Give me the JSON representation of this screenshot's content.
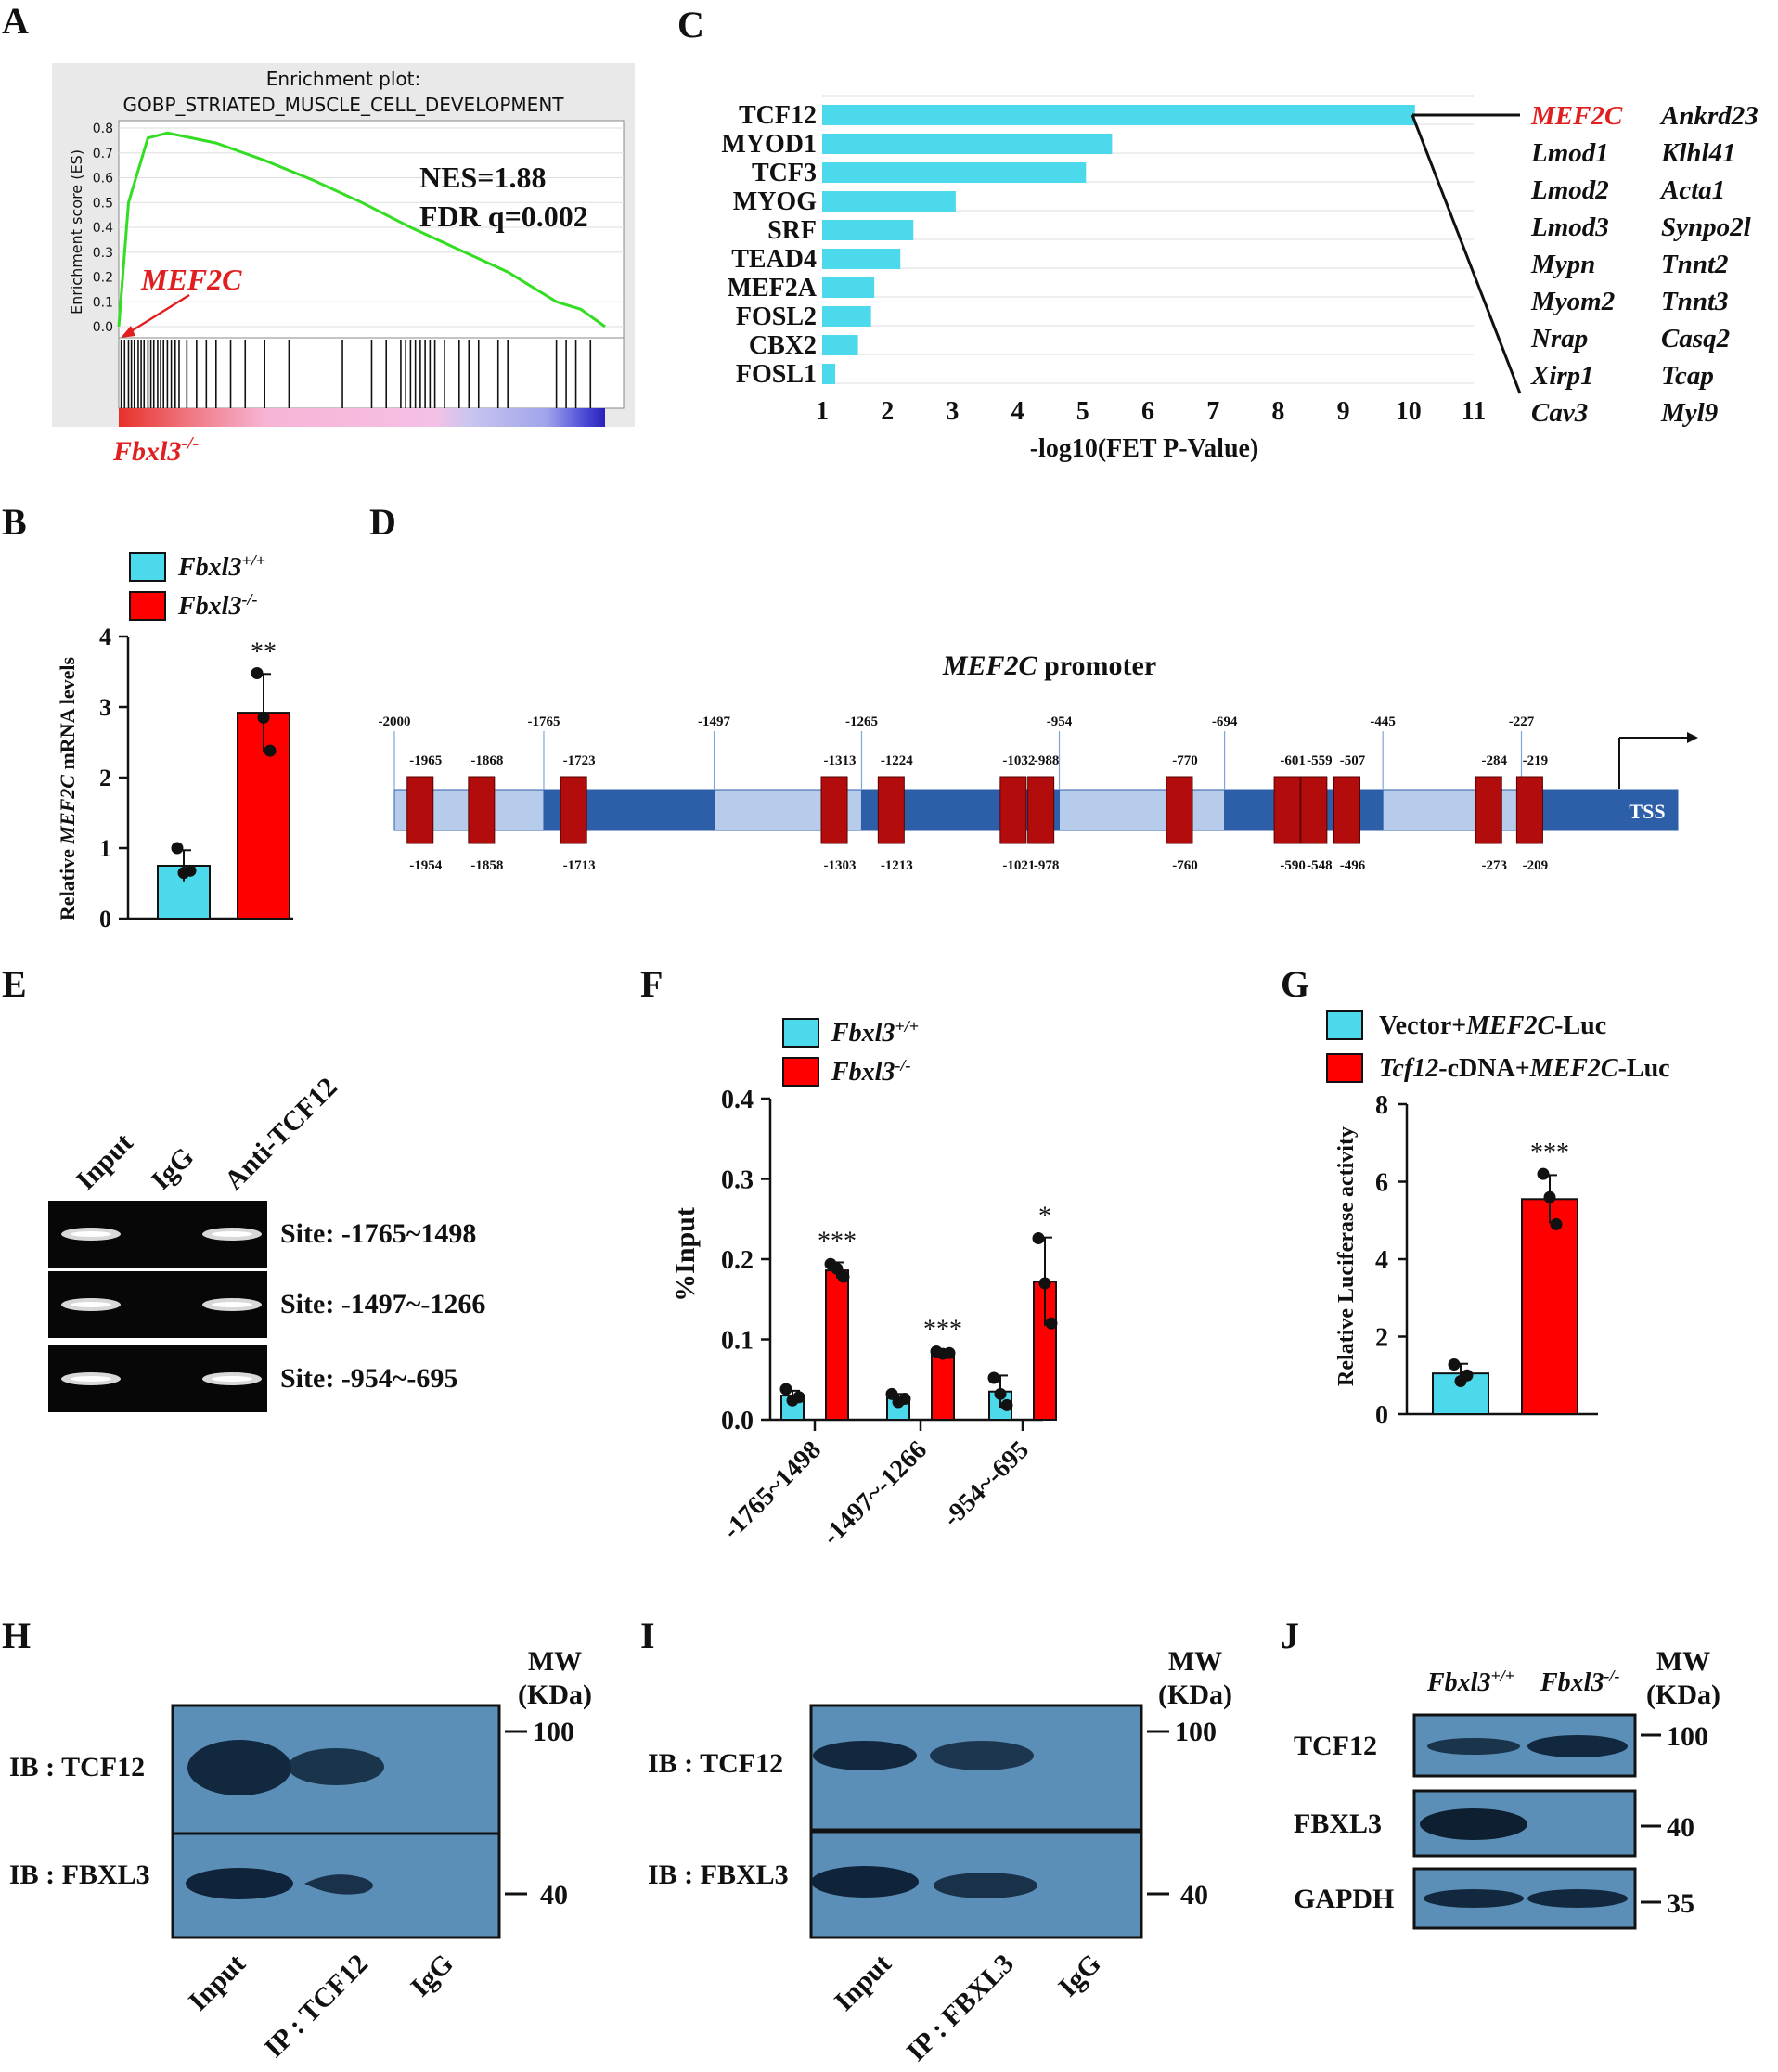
{
  "panels": {
    "A": "A",
    "B": "B",
    "C": "C",
    "D": "D",
    "E": "E",
    "F": "F",
    "G": "G",
    "H": "H",
    "I": "I",
    "J": "J"
  },
  "panel_a": {
    "title_line1": "Enrichment plot:",
    "title_line2": "GOBP_STRIATED_MUSCLE_CELL_DEVELOPMENT",
    "ylabel": "Enrichment score (ES)",
    "yticks": [
      "0.8",
      "0.7",
      "0.6",
      "0.5",
      "0.4",
      "0.3",
      "0.2",
      "0.1",
      "0.0"
    ],
    "nes": "NES=1.88",
    "fdr": "FDR q=0.002",
    "gene_label": "MEF2C",
    "genotype": "Fbxl3",
    "genotype_sup": "-/-"
  },
  "panel_b": {
    "legend": [
      {
        "name": "Fbxl3",
        "sup": "+/+",
        "color": "#4dd9ec"
      },
      {
        "name": "Fbxl3",
        "sup": "-/-",
        "color": "#ff0000"
      }
    ],
    "ylabel_pre": "Relative ",
    "ylabel_gene": "MEF2C",
    "ylabel_post": " mRNA levels",
    "yticks": [
      "0",
      "1",
      "2",
      "3",
      "4"
    ],
    "sig": "**"
  },
  "panel_c": {
    "xlabel": "-log10(FET P-Value)",
    "xticks": [
      "1",
      "2",
      "3",
      "4",
      "5",
      "6",
      "7",
      "8",
      "9",
      "10",
      "11"
    ],
    "genes_col1": [
      "MEF2C",
      "Lmod1",
      "Lmod2",
      "Lmod3",
      "Mypn",
      "Myom2",
      "Nrap",
      "Xirp1",
      "Cav3"
    ],
    "genes_col2": [
      "Ankrd23",
      "Klhl41",
      "Acta1",
      "Synpo2l",
      "Tnnt2",
      "Tnnt3",
      "Casq2",
      "Tcap",
      "Myl9"
    ]
  },
  "panel_d": {
    "title_gene": "MEF2C",
    "title_rest": " promoter",
    "top_labels": [
      "-2000",
      "-1765",
      "-1497",
      "-1265",
      "-954",
      "-694",
      "-445",
      "-227"
    ],
    "site_top": [
      "-1965",
      "-1868",
      "-1723",
      "-1313",
      "-1224",
      "-1032",
      "-988",
      "-770",
      "-601",
      "-559",
      "-507",
      "-284",
      "-219"
    ],
    "site_bottom": [
      "-1954",
      "-1858",
      "-1713",
      "-1303",
      "-1213",
      "-1021",
      "-978",
      "-760",
      "-590",
      "-548",
      "-496",
      "-273",
      "-209"
    ],
    "tss": "TSS"
  },
  "panel_e": {
    "lanes": [
      "Input",
      "IgG",
      "Anti-TCF12"
    ],
    "sites": [
      "Site: -1765~1498",
      "Site: -1497~-1266",
      "Site: -954~-695"
    ]
  },
  "panel_f": {
    "legend": [
      {
        "name": "Fbxl3",
        "sup": "+/+",
        "color": "#4dd9ec"
      },
      {
        "name": "Fbxl3",
        "sup": "-/-",
        "color": "#ff0000"
      }
    ],
    "ylabel": "%Input",
    "yticks": [
      "0.0",
      "0.1",
      "0.2",
      "0.3",
      "0.4"
    ],
    "xticks": [
      "-1765~1498",
      "-1497~-1266",
      "-954~-695"
    ],
    "sig": [
      "***",
      "***",
      "*"
    ]
  },
  "panel_g": {
    "legend1_pre": "Vector+",
    "legend1_gene": "MEF2C",
    "legend1_post": "-Luc",
    "legend2_gene1": "Tcf12",
    "legend2_mid": "-cDNA+",
    "legend2_gene2": "MEF2C",
    "legend2_post": "-Luc",
    "ylabel": "Relative Luciferase activity",
    "yticks": [
      "0",
      "2",
      "4",
      "6",
      "8"
    ],
    "sig": "***"
  },
  "panel_h": {
    "mw": "MW",
    "kda": "(KDa)",
    "ib1": "IB : TCF12",
    "ib2": "IB : FBXL3",
    "mw1": "100",
    "mw2": "40",
    "lanes": [
      "Input",
      "IP : TCF12",
      "IgG"
    ]
  },
  "panel_i": {
    "mw": "MW",
    "kda": "(KDa)",
    "ib1": "IB : TCF12",
    "ib2": "IB : FBXL3",
    "mw1": "100",
    "mw2": "40",
    "lanes": [
      "Input",
      "IP : FBXL3",
      "IgG"
    ]
  },
  "panel_j": {
    "lane1": "Fbxl3",
    "lane1_sup": "+/+",
    "lane2": "Fbxl3",
    "lane2_sup": "-/-",
    "mw": "MW",
    "kda": "(KDa)",
    "rows": [
      "TCF12",
      "FBXL3",
      "GAPDH"
    ],
    "mws": [
      "100",
      "40",
      "35"
    ]
  },
  "chart_data": [
    {
      "type": "line",
      "title": "GOBP_STRIATED_MUSCLE_CELL_DEVELOPMENT",
      "ylabel": "Enrichment score (ES)",
      "ylim": [
        0,
        0.8
      ],
      "x": [
        0,
        0.02,
        0.06,
        0.1,
        0.2,
        0.3,
        0.4,
        0.5,
        0.6,
        0.7,
        0.8,
        0.9,
        0.95,
        1.0
      ],
      "y": [
        0,
        0.5,
        0.76,
        0.78,
        0.74,
        0.67,
        0.59,
        0.5,
        0.4,
        0.31,
        0.22,
        0.1,
        0.07,
        0.0
      ]
    },
    {
      "type": "bar",
      "categories": [
        "Fbxl3+/+",
        "Fbxl3-/-"
      ],
      "values": [
        0.75,
        2.92
      ],
      "errors": [
        0.22,
        0.55
      ],
      "points": [
        [
          1.0,
          0.65,
          0.68
        ],
        [
          3.48,
          2.85,
          2.38
        ]
      ],
      "ylim": [
        0,
        4
      ],
      "ylabel": "Relative MEF2C mRNA levels"
    },
    {
      "type": "bar",
      "orientation": "horizontal",
      "categories": [
        "TCF12",
        "MYOD1",
        "TCF3",
        "MYOG",
        "SRF",
        "TEAD4",
        "MEF2A",
        "FOSL2",
        "CBX2",
        "FOSL1"
      ],
      "values": [
        10.1,
        5.45,
        5.05,
        3.05,
        2.4,
        2.2,
        1.8,
        1.75,
        1.55,
        1.2
      ],
      "xlim": [
        1,
        11
      ],
      "xlabel": "-log10(FET P-Value)"
    },
    {
      "type": "bar",
      "categories": [
        "-1765~1498",
        "-1497~-1266",
        "-954~-695"
      ],
      "series": [
        {
          "name": "Fbxl3+/+",
          "values": [
            0.03,
            0.027,
            0.035
          ],
          "errors": [
            0.006,
            0.005,
            0.02
          ]
        },
        {
          "name": "Fbxl3-/-",
          "values": [
            0.186,
            0.083,
            0.172
          ],
          "errors": [
            0.01,
            0.003,
            0.055
          ]
        }
      ],
      "points": [
        [
          [
            0.038,
            0.024,
            0.028
          ],
          [
            0.194,
            0.188,
            0.178
          ]
        ],
        [
          [
            0.032,
            0.022,
            0.026
          ],
          [
            0.085,
            0.082,
            0.083
          ]
        ],
        [
          [
            0.052,
            0.032,
            0.018
          ],
          [
            0.226,
            0.17,
            0.12
          ]
        ]
      ],
      "ylim": [
        0,
        0.4
      ],
      "ylabel": "%Input"
    },
    {
      "type": "bar",
      "categories": [
        "Vector+MEF2C-Luc",
        "Tcf12-cDNA+MEF2C-Luc"
      ],
      "values": [
        1.05,
        5.55
      ],
      "errors": [
        0.25,
        0.62
      ],
      "points": [
        [
          1.28,
          0.85,
          1.0
        ],
        [
          6.2,
          5.6,
          4.9
        ]
      ],
      "ylim": [
        0,
        8
      ],
      "ylabel": "Relative Luciferase activity"
    }
  ]
}
